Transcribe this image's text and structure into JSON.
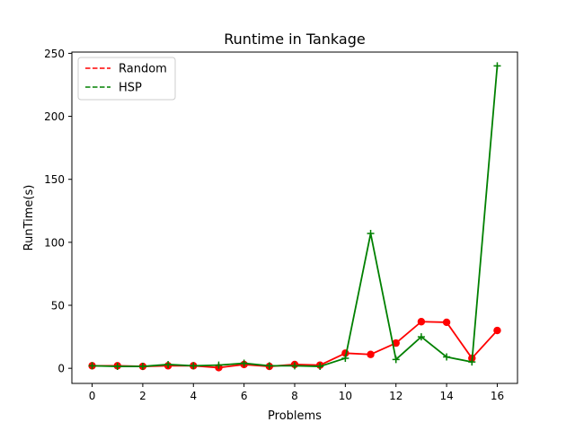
{
  "chart_data": {
    "type": "line",
    "title": "Runtime in Tankage",
    "xlabel": "Problems",
    "ylabel": "RunTime(s)",
    "x": [
      0,
      1,
      2,
      3,
      4,
      5,
      6,
      7,
      8,
      9,
      10,
      11,
      12,
      13,
      14,
      15,
      16
    ],
    "xlim": [
      -0.8,
      16.8
    ],
    "ylim": [
      -12,
      251
    ],
    "xticks": [
      0,
      2,
      4,
      6,
      8,
      10,
      12,
      14,
      16
    ],
    "yticks": [
      0,
      50,
      100,
      150,
      200,
      250
    ],
    "grid": false,
    "legend_position": "top-left",
    "series": [
      {
        "name": "Random",
        "color": "#ff0000",
        "marker": "circle",
        "values": [
          2,
          2,
          1.5,
          2,
          2,
          0.5,
          3,
          1.5,
          3,
          2.5,
          12,
          11,
          20,
          37,
          36.5,
          8,
          30
        ]
      },
      {
        "name": "HSP",
        "color": "#008000",
        "marker": "plus",
        "values": [
          2,
          1.5,
          1.5,
          3,
          2,
          2.5,
          4,
          2,
          2,
          1.5,
          8,
          107,
          7,
          25,
          9,
          5,
          240
        ]
      }
    ]
  }
}
